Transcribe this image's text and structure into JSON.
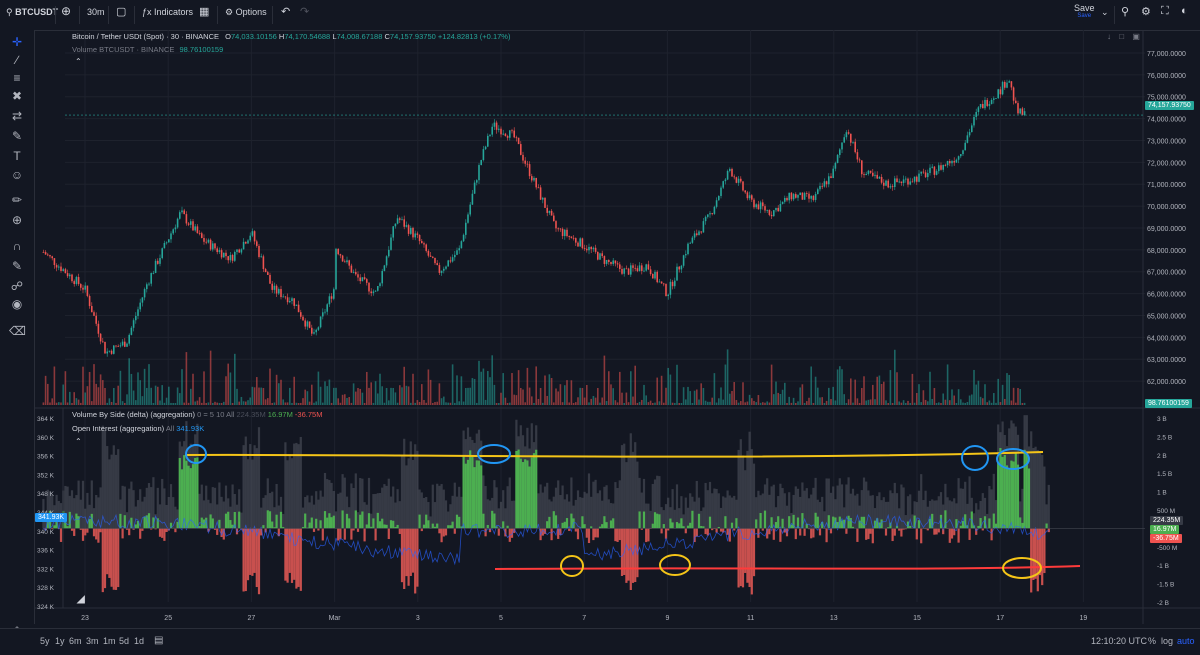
{
  "toolbar": {
    "symbol": "BTCUSDT",
    "interval": "30m",
    "indicators_label": "Indicators",
    "options_label": "Options",
    "save_label": "Save",
    "save_sub": "Save"
  },
  "legend": {
    "title": "Bitcoin / Tether USDt (Spot) · 30 · BINANCE",
    "o_label": "O",
    "o_value": "74,033.10156",
    "h_label": "H",
    "h_value": "74,170.54688",
    "l_label": "L",
    "l_value": "74,008.67188",
    "c_label": "C",
    "c_value": "74,157.93750",
    "change": "+124.82813 (+0.17%)",
    "volume_label": "Volume BTCUSDT · BINANCE",
    "volume_value": "98.76100159"
  },
  "lower_legend": {
    "vbs_label": "Volume By Side (delta) (aggregation)",
    "vbs_params": "0 = 5 10 All",
    "vbs_v1": "224.35M",
    "vbs_v2": "16.97M",
    "vbs_v3": "-36.75M",
    "oi_label": "Open Interest (aggregation)",
    "oi_params": "All",
    "oi_value": "341.93K"
  },
  "price_tags": {
    "last_price": "74,157.93750",
    "volume_tag": "98.76100159",
    "oi_tag": "341.93K",
    "delta_tag1": "224.35M",
    "delta_tag2": "16.97M",
    "delta_tag3": "-36.75M"
  },
  "bottombar": {
    "ranges": [
      "5y",
      "1y",
      "6m",
      "3m",
      "1m",
      "5d",
      "1d"
    ],
    "time": "12:10:20 UTC",
    "pct": "%",
    "log": "log",
    "auto": "auto"
  },
  "colors": {
    "bg": "#131722",
    "up": "#26a69a",
    "down": "#ef5350",
    "delta_up": "#4caf50",
    "delta_down": "#c8504e",
    "oi_line": "#2962ff",
    "annot_yellow": "#f5c518",
    "annot_blue": "#2196f3",
    "annot_red": "#ff3b3b"
  },
  "chart_data": [
    {
      "type": "candlestick",
      "title": "Bitcoin / Tether USDt (Spot) · 30 · BINANCE",
      "ylabel": "",
      "ylim": [
        61500,
        77500
      ],
      "y_ticks": [
        "77,000.0000",
        "76,000.0000",
        "75,000.0000",
        "74,000.0000",
        "73,000.0000",
        "72,000.0000",
        "71,000.0000",
        "70,000.0000",
        "69,000.0000",
        "68,000.0000",
        "67,000.0000",
        "66,000.0000",
        "65,000.0000",
        "64,000.0000",
        "63,000.0000",
        "62,000.0000"
      ],
      "y_tick_values": [
        77000,
        76000,
        75000,
        74000,
        73000,
        72000,
        71000,
        70000,
        69000,
        68000,
        67000,
        66000,
        65000,
        64000,
        63000,
        62000
      ],
      "x_ticks": [
        "23",
        "25",
        "27",
        "Mar",
        "3",
        "5",
        "7",
        "9",
        "11",
        "13",
        "15",
        "17",
        "19"
      ],
      "price_path_approx": [
        {
          "x": "22",
          "y": 67900
        },
        {
          "x": "23",
          "y": 66200
        },
        {
          "x": "23.5",
          "y": 63300
        },
        {
          "x": "24",
          "y": 63800
        },
        {
          "x": "24.5",
          "y": 66500
        },
        {
          "x": "25.3",
          "y": 69700
        },
        {
          "x": "25.8",
          "y": 68500
        },
        {
          "x": "26.5",
          "y": 67600
        },
        {
          "x": "27",
          "y": 68800
        },
        {
          "x": "27.5",
          "y": 66200
        },
        {
          "x": "28",
          "y": 65700
        },
        {
          "x": "28.5",
          "y": 64000
        },
        {
          "x": "29",
          "y": 66300
        },
        {
          "x": "Mar",
          "y": 68200
        },
        {
          "x": "1.5",
          "y": 66800
        },
        {
          "x": "2",
          "y": 66000
        },
        {
          "x": "2.5",
          "y": 69500
        },
        {
          "x": "3",
          "y": 68500
        },
        {
          "x": "3.5",
          "y": 67000
        },
        {
          "x": "4",
          "y": 68000
        },
        {
          "x": "4.5",
          "y": 72000
        },
        {
          "x": "4.8",
          "y": 73700
        },
        {
          "x": "5.3",
          "y": 73200
        },
        {
          "x": "5.7",
          "y": 71500
        },
        {
          "x": "6.3",
          "y": 69000
        },
        {
          "x": "7",
          "y": 68200
        },
        {
          "x": "7.5",
          "y": 67500
        },
        {
          "x": "8",
          "y": 67000
        },
        {
          "x": "8.5",
          "y": 67300
        },
        {
          "x": "9",
          "y": 66000
        },
        {
          "x": "9.5",
          "y": 68200
        },
        {
          "x": "10",
          "y": 69500
        },
        {
          "x": "10.5",
          "y": 71700
        },
        {
          "x": "11",
          "y": 70200
        },
        {
          "x": "11.5",
          "y": 69700
        },
        {
          "x": "12",
          "y": 70500
        },
        {
          "x": "12.5",
          "y": 70300
        },
        {
          "x": "13",
          "y": 71600
        },
        {
          "x": "13.3",
          "y": 73600
        },
        {
          "x": "13.7",
          "y": 71500
        },
        {
          "x": "14.3",
          "y": 71000
        },
        {
          "x": "15",
          "y": 71300
        },
        {
          "x": "15.5",
          "y": 71700
        },
        {
          "x": "16",
          "y": 72300
        },
        {
          "x": "16.5",
          "y": 74500
        },
        {
          "x": "17",
          "y": 75300
        },
        {
          "x": "17.2",
          "y": 75900
        },
        {
          "x": "17.4",
          "y": 74300
        },
        {
          "x": "17.6",
          "y": 74158
        }
      ],
      "last_price": 74157.9375
    },
    {
      "type": "bar",
      "title": "Volume BTCUSDT · BINANCE",
      "last_value": 98.76100159
    },
    {
      "type": "area",
      "title": "Volume By Side (delta) (aggregation)",
      "ylim": [
        -2,
        3
      ],
      "y_ticks": [
        "3 B",
        "2.5 B",
        "2 B",
        "1.5 B",
        "1 B",
        "500 M",
        "-500 M",
        "-1 B",
        "-1.5 B",
        "-2 B"
      ],
      "y_tick_values": [
        3,
        2.5,
        2,
        1.5,
        1,
        0.5,
        -0.5,
        -1,
        -1.5,
        -2
      ],
      "last_values": [
        "224.35M",
        "16.97M",
        "-36.75M"
      ]
    },
    {
      "type": "line",
      "title": "Open Interest (aggregation)",
      "ylim": [
        324,
        364
      ],
      "y_ticks": [
        "364 K",
        "360 K",
        "356 K",
        "352 K",
        "348 K",
        "344 K",
        "340 K",
        "336 K",
        "332 K",
        "328 K",
        "324 K"
      ],
      "y_tick_values": [
        364,
        360,
        356,
        352,
        348,
        344,
        340,
        336,
        332,
        328,
        324
      ],
      "last_value": "341.93K"
    }
  ]
}
